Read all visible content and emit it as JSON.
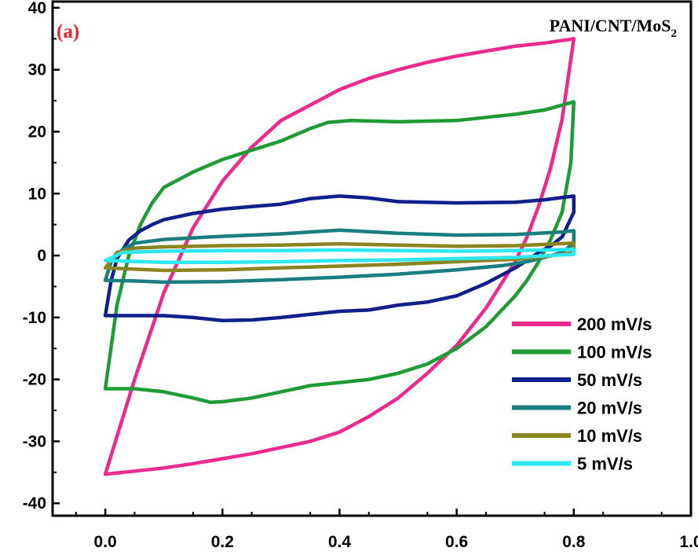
{
  "chart_data": {
    "type": "line",
    "panel_label": "(a)",
    "panel_label_color": "#e3262b",
    "title_main": "PANI/CNT/MoS",
    "title_sub": "2",
    "xlabel": "",
    "ylabel": "",
    "xlim": [
      -0.09,
      1.0
    ],
    "ylim": [
      -42,
      41
    ],
    "xticks": [
      0.0,
      0.2,
      0.4,
      0.6,
      0.8,
      1.0
    ],
    "xtick_labels": [
      "0.0",
      "0.2",
      "0.4",
      "0.6",
      "0.8",
      "1.0"
    ],
    "yticks": [
      -40,
      -30,
      -20,
      -10,
      0,
      10,
      20,
      30,
      40
    ],
    "ytick_labels": [
      "-40",
      "-30",
      "-20",
      "-10",
      "0",
      "10",
      "20",
      "30",
      "40"
    ],
    "grid": false,
    "legend_position": "bottom-right",
    "series": [
      {
        "name": "200 mV/s",
        "color": "#ec2a8c",
        "x": [
          0.0,
          0.05,
          0.1,
          0.15,
          0.2,
          0.25,
          0.3,
          0.35,
          0.4,
          0.45,
          0.5,
          0.55,
          0.6,
          0.65,
          0.7,
          0.75,
          0.8,
          0.78,
          0.76,
          0.74,
          0.72,
          0.7,
          0.65,
          0.6,
          0.55,
          0.5,
          0.45,
          0.4,
          0.35,
          0.3,
          0.25,
          0.2,
          0.15,
          0.1,
          0.05,
          0.02,
          0.0
        ],
        "y": [
          -35.3,
          -20.0,
          -6.0,
          4.5,
          12.0,
          17.5,
          21.8,
          24.3,
          26.8,
          28.6,
          30.0,
          31.2,
          32.2,
          33.0,
          33.8,
          34.3,
          35.0,
          22.0,
          14.0,
          8.0,
          3.0,
          -1.0,
          -8.5,
          -14.5,
          -19.0,
          -23.0,
          -26.0,
          -28.5,
          -30.0,
          -31.0,
          -32.0,
          -32.8,
          -33.6,
          -34.3,
          -34.8,
          -35.1,
          -35.3
        ]
      },
      {
        "name": "100 mV/s",
        "color": "#1e9b35",
        "x": [
          0.0,
          0.02,
          0.04,
          0.06,
          0.08,
          0.1,
          0.15,
          0.2,
          0.25,
          0.3,
          0.35,
          0.38,
          0.42,
          0.5,
          0.6,
          0.7,
          0.75,
          0.8,
          0.795,
          0.78,
          0.76,
          0.74,
          0.72,
          0.7,
          0.65,
          0.6,
          0.55,
          0.5,
          0.45,
          0.4,
          0.35,
          0.3,
          0.25,
          0.2,
          0.18,
          0.15,
          0.1,
          0.05,
          0.0
        ],
        "y": [
          -21.5,
          -8.0,
          0.0,
          5.0,
          8.5,
          11.0,
          13.5,
          15.5,
          17.0,
          18.5,
          20.5,
          21.5,
          21.8,
          21.6,
          21.8,
          22.8,
          23.5,
          24.8,
          15.0,
          7.0,
          2.5,
          -1.0,
          -4.0,
          -6.5,
          -11.5,
          -15.0,
          -17.5,
          -19.0,
          -20.0,
          -20.5,
          -21.0,
          -22.0,
          -23.0,
          -23.6,
          -23.7,
          -23.0,
          -22.0,
          -21.5,
          -21.5
        ]
      },
      {
        "name": "50 mV/s",
        "color": "#0f1f8c",
        "x": [
          0.0,
          0.01,
          0.02,
          0.04,
          0.06,
          0.08,
          0.1,
          0.15,
          0.2,
          0.25,
          0.3,
          0.35,
          0.4,
          0.45,
          0.5,
          0.6,
          0.7,
          0.75,
          0.8,
          0.8,
          0.78,
          0.76,
          0.74,
          0.72,
          0.7,
          0.65,
          0.6,
          0.55,
          0.5,
          0.45,
          0.4,
          0.35,
          0.3,
          0.25,
          0.2,
          0.15,
          0.1,
          0.05,
          0.0
        ],
        "y": [
          -9.7,
          -4.0,
          -0.5,
          2.5,
          4.0,
          5.0,
          5.8,
          6.8,
          7.5,
          7.9,
          8.3,
          9.2,
          9.6,
          9.3,
          8.7,
          8.5,
          8.6,
          9.0,
          9.6,
          7.0,
          3.0,
          1.5,
          0.5,
          -0.8,
          -2.0,
          -4.5,
          -6.5,
          -7.5,
          -8.0,
          -8.8,
          -9.0,
          -9.5,
          -10.0,
          -10.4,
          -10.5,
          -10.0,
          -9.7,
          -9.7,
          -9.7
        ]
      },
      {
        "name": "20 mV/s",
        "color": "#1a7d80",
        "x": [
          0.0,
          0.01,
          0.03,
          0.05,
          0.1,
          0.2,
          0.3,
          0.4,
          0.5,
          0.6,
          0.7,
          0.78,
          0.8,
          0.8,
          0.78,
          0.75,
          0.72,
          0.68,
          0.6,
          0.5,
          0.4,
          0.3,
          0.2,
          0.1,
          0.05,
          0.0
        ],
        "y": [
          -4.0,
          -1.0,
          1.0,
          2.0,
          2.6,
          3.1,
          3.5,
          4.1,
          3.6,
          3.3,
          3.4,
          3.8,
          4.0,
          2.0,
          0.5,
          -0.3,
          -1.0,
          -1.6,
          -2.3,
          -3.0,
          -3.5,
          -3.9,
          -4.2,
          -4.3,
          -4.1,
          -4.0
        ]
      },
      {
        "name": "10 mV/s",
        "color": "#8a8520",
        "x": [
          0.0,
          0.02,
          0.05,
          0.1,
          0.2,
          0.3,
          0.4,
          0.5,
          0.6,
          0.7,
          0.8,
          0.8,
          0.75,
          0.7,
          0.6,
          0.5,
          0.4,
          0.3,
          0.2,
          0.1,
          0.0
        ],
        "y": [
          -2.0,
          0.5,
          1.2,
          1.4,
          1.6,
          1.7,
          1.9,
          1.7,
          1.5,
          1.6,
          2.0,
          0.5,
          -0.2,
          -0.6,
          -1.0,
          -1.4,
          -1.7,
          -2.0,
          -2.3,
          -2.4,
          -2.0
        ]
      },
      {
        "name": "5 mV/s",
        "color": "#2ee8f0",
        "x": [
          0.0,
          0.03,
          0.1,
          0.2,
          0.3,
          0.4,
          0.5,
          0.6,
          0.7,
          0.8,
          0.8,
          0.7,
          0.6,
          0.5,
          0.4,
          0.3,
          0.2,
          0.1,
          0.0
        ],
        "y": [
          -0.8,
          0.5,
          0.7,
          0.8,
          0.8,
          0.9,
          0.8,
          0.7,
          0.8,
          1.0,
          0.2,
          -0.3,
          -0.5,
          -0.7,
          -0.8,
          -1.0,
          -1.1,
          -1.1,
          -0.8
        ]
      }
    ]
  }
}
